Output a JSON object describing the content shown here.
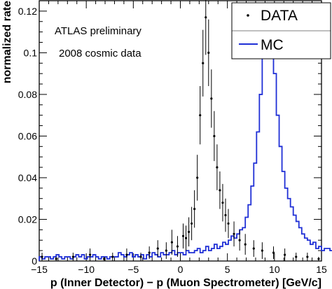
{
  "chart_data": {
    "type": "histogram",
    "xlabel": "p (Inner Detector) − p (Muon Spectrometer) [GeV/c]",
    "ylabel": "normalized rate",
    "xlim": [
      -15,
      15
    ],
    "ylim": [
      0,
      0.125
    ],
    "xticks": [
      "−15",
      "−10",
      "−5",
      "0",
      "5",
      "10",
      "15"
    ],
    "yticks": [
      "0",
      "0.02",
      "0.04",
      "0.06",
      "0.08",
      "0.1",
      "0.12"
    ],
    "annotations": [
      "ATLAS preliminary",
      "2008 cosmic data"
    ],
    "legend": {
      "placement": "top-right",
      "entries": [
        "DATA",
        "MC"
      ]
    },
    "grid": false,
    "colors": {
      "mc": "#1f2fd6",
      "data": "#000000"
    },
    "bin_width": 0.3,
    "series": [
      {
        "name": "MC",
        "style": "step",
        "bin_edges_start": -15,
        "values": [
          0.002,
          0.001,
          0.002,
          0.002,
          0.001,
          0.002,
          0.003,
          0.002,
          0.001,
          0.002,
          0.002,
          0.001,
          0.002,
          0.003,
          0.002,
          0.003,
          0.001,
          0.002,
          0.002,
          0.003,
          0.002,
          0.001,
          0.002,
          0.002,
          0.001,
          0.002,
          0.002,
          0.002,
          0.004,
          0.003,
          0.002,
          0.003,
          0.004,
          0.002,
          0.003,
          0.002,
          0.003,
          0.001,
          0.003,
          0.002,
          0.004,
          0.003,
          0.002,
          0.004,
          0.003,
          0.003,
          0.004,
          0.005,
          0.003,
          0.004,
          0.004,
          0.003,
          0.005,
          0.004,
          0.004,
          0.005,
          0.006,
          0.004,
          0.005,
          0.007,
          0.005,
          0.006,
          0.008,
          0.006,
          0.007,
          0.009,
          0.008,
          0.01,
          0.012,
          0.011,
          0.013,
          0.015,
          0.016,
          0.021,
          0.027,
          0.036,
          0.047,
          0.062,
          0.08,
          0.1,
          0.118,
          0.121,
          0.112,
          0.09,
          0.07,
          0.055,
          0.043,
          0.035,
          0.03,
          0.026,
          0.022,
          0.019,
          0.016,
          0.013,
          0.011,
          0.01,
          0.008,
          0.009,
          0.006,
          0.007,
          0.005,
          0.006,
          0.006,
          0.005,
          0.004,
          0.005,
          0.004,
          0.004,
          0.003,
          0.004,
          0.003,
          0.003,
          0.002,
          0.003,
          0.002,
          0.003,
          0.002,
          0.002,
          0.003,
          0.002,
          0.002,
          0.001,
          0.002,
          0.002,
          0.001,
          0.001,
          0.002,
          0.001,
          0.002,
          0.001,
          0.001,
          0.002,
          0.001,
          0.001,
          0.002,
          0.001,
          0.001,
          0.002,
          0.001,
          0.002,
          0.001,
          0.001,
          0.001,
          0.002,
          0.001,
          0.001,
          0.002,
          0.001,
          0.001,
          0.001,
          0.002,
          0.001
        ]
      },
      {
        "name": "DATA",
        "style": "points",
        "x": [
          -14.7,
          -13.2,
          -11.4,
          -9.6,
          -8.1,
          -7.2,
          -5.7,
          -4.2,
          -3.3,
          -2.4,
          -1.5,
          -0.9,
          -0.3,
          0.3,
          0.6,
          0.9,
          1.2,
          1.5,
          1.8,
          2.1,
          2.4,
          2.7,
          3.0,
          3.3,
          3.6,
          3.9,
          4.2,
          4.5,
          4.8,
          5.1,
          5.7,
          6.3,
          6.9,
          7.8,
          8.7,
          9.9,
          11.1,
          12.3,
          13.5,
          14.7
        ],
        "y": [
          0.002,
          0.001,
          0.002,
          0.003,
          0.001,
          0.002,
          0.003,
          0.002,
          0.004,
          0.006,
          0.005,
          0.009,
          0.007,
          0.012,
          0.011,
          0.014,
          0.018,
          0.025,
          0.04,
          0.07,
          0.095,
          0.117,
          0.1,
          0.078,
          0.06,
          0.045,
          0.034,
          0.028,
          0.022,
          0.018,
          0.013,
          0.01,
          0.008,
          0.006,
          0.005,
          0.004,
          0.003,
          0.002,
          0.002,
          0.001
        ],
        "yerr": [
          0.002,
          0.001,
          0.002,
          0.003,
          0.001,
          0.002,
          0.003,
          0.002,
          0.003,
          0.004,
          0.004,
          0.006,
          0.005,
          0.006,
          0.006,
          0.007,
          0.008,
          0.009,
          0.011,
          0.014,
          0.016,
          0.018,
          0.016,
          0.014,
          0.012,
          0.011,
          0.009,
          0.009,
          0.008,
          0.007,
          0.006,
          0.005,
          0.005,
          0.004,
          0.004,
          0.003,
          0.003,
          0.002,
          0.002,
          0.001
        ]
      }
    ]
  }
}
